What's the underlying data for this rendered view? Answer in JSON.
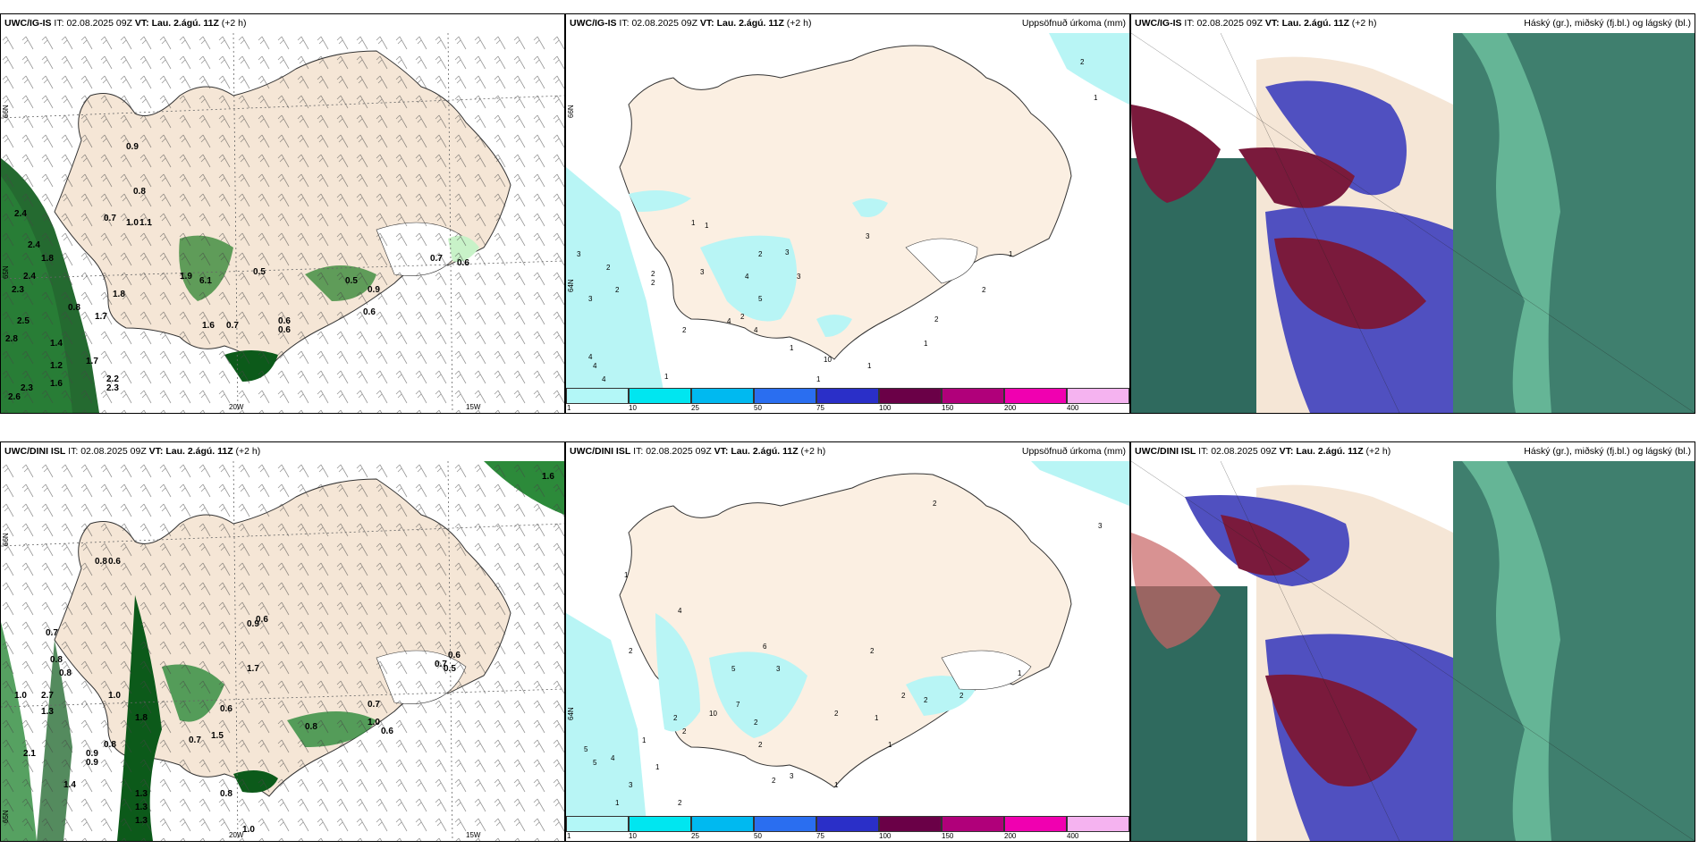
{
  "rows": [
    {
      "model": "UWC/IG-IS",
      "it_label": "IT:",
      "it": "02.08.2025 09Z",
      "vt_label": "VT:",
      "vt": "Lau. 2.ágú. 11Z",
      "lead": "(+2 h)"
    },
    {
      "model": "UWC/DINI ISL",
      "it_label": "IT:",
      "it": "02.08.2025 09Z",
      "vt_label": "VT:",
      "vt": "Lau. 2.ágú. 11Z",
      "lead": "(+2 h)"
    }
  ],
  "panel_titles": {
    "precip": "Uppsöfnuð úrkoma (mm)",
    "clouds": "Háský (gr.), miðský (fj.bl.) og lágský (bl.)"
  },
  "axis_labels": {
    "lat_66": "66N",
    "lat_65": "65N",
    "lat_64": "64N",
    "lon_20": "20W",
    "lon_15": "15W"
  },
  "precip_legend": {
    "ticks": [
      "1",
      "10",
      "25",
      "50",
      "75",
      "100",
      "150",
      "200",
      "400"
    ],
    "colors": [
      "#b3f7f7",
      "#00e6f0",
      "#00b9f0",
      "#2a6ef0",
      "#2a2fc8",
      "#6a0047",
      "#b0007a",
      "#f000b0",
      "#f5b3f0"
    ]
  },
  "colors": {
    "land": "#f5e6d6",
    "precip_light": "#b8f5f5",
    "wind_green_light": "#c8f2c8",
    "wind_green_mid": "#6cc46c",
    "wind_green_dark": "#0c5a1a",
    "cloud_high": "#7a1a3c",
    "cloud_mid": "#5050c0",
    "cloud_low": "#2a7a6a"
  },
  "values_top_wind": [
    "0.9",
    "0.8",
    "1.0",
    "1.1",
    "0.7",
    "2.4",
    "2.4",
    "1.8",
    "2.3",
    "2.5",
    "2.8",
    "2.4",
    "1.7",
    "0.8",
    "1.4",
    "1.2",
    "1.6",
    "2.2",
    "2.3",
    "2.3",
    "2.6",
    "1.9",
    "6.1",
    "1.6",
    "1.8",
    "0.5",
    "0.7",
    "0.6",
    "0.6",
    "0.5",
    "0.9",
    "0.6",
    "0.7",
    "0.6",
    "1.7"
  ],
  "values_top_precip": [
    "3",
    "2",
    "2",
    "3",
    "4",
    "4",
    "4",
    "1",
    "1",
    "1",
    "2",
    "2",
    "3",
    "4",
    "5",
    "2",
    "3",
    "3",
    "2",
    "4",
    "4",
    "2",
    "10",
    "1",
    "1",
    "1",
    "3",
    "1",
    "2",
    "1",
    "2",
    "1",
    "2"
  ],
  "values_bot_wind": [
    "1.6",
    "0.8",
    "0.6",
    "0.7",
    "0.8",
    "0.8",
    "0.9",
    "2.7",
    "1.3",
    "1.0",
    "1.0",
    "0.8",
    "2.1",
    "1.4",
    "0.9",
    "1.3",
    "1.3",
    "1.3",
    "1.8",
    "0.7",
    "0.9",
    "1.7",
    "0.6",
    "1.5",
    "0.8",
    "1.0",
    "0.6",
    "0.7",
    "0.6",
    "1.0",
    "0.8",
    "0.5",
    "0.7",
    "0.6"
  ],
  "values_bot_precip": [
    "2",
    "3",
    "1",
    "2",
    "1",
    "4",
    "5",
    "4",
    "5",
    "3",
    "1",
    "1",
    "2",
    "2",
    "5",
    "6",
    "3",
    "10",
    "7",
    "2",
    "2",
    "2",
    "2",
    "1",
    "3",
    "2",
    "1",
    "2",
    "2",
    "2",
    "1",
    "1",
    "2"
  ]
}
